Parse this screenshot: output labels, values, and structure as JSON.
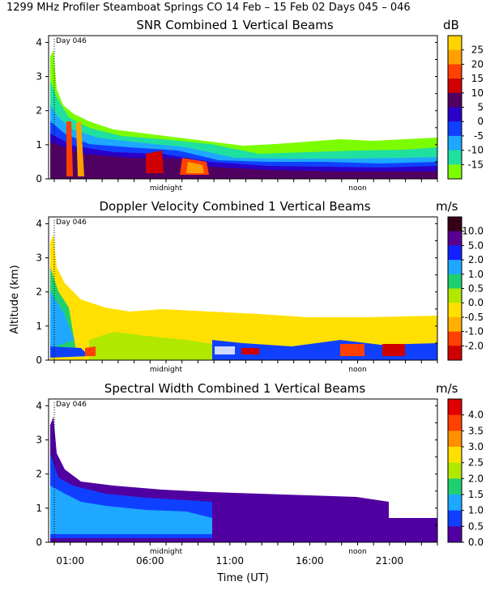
{
  "figure_title": "1299 MHz Profiler   Steamboat Springs CO   14 Feb – 15 Feb 02 Days 045 – 046",
  "chart_data": [
    {
      "type": "heatmap",
      "title": "SNR Combined 1 Vertical Beams",
      "units": "dB",
      "ylabel": "Altitude (km)",
      "ylim": [
        0,
        4.2
      ],
      "yticks": [
        "0",
        "1",
        "2",
        "3",
        "4"
      ],
      "xticks": [
        "midnight",
        "noon"
      ],
      "day_label": "Day 046",
      "colorbar": {
        "labels": [
          "25",
          "20",
          "15",
          "10",
          "5",
          "0",
          "-5",
          "-10",
          "-15"
        ],
        "colors": [
          "#ffd400",
          "#ffa000",
          "#ff4000",
          "#d00000",
          "#500060",
          "#2a00c8",
          "#1040ff",
          "#1ea8ff",
          "#20e0a0",
          "#7cfc00"
        ]
      }
    },
    {
      "type": "heatmap",
      "title": "Doppler Velocity Combined 1 Vertical Beams",
      "units": "m/s",
      "ylabel": "Altitude (km)",
      "ylim": [
        0,
        4.2
      ],
      "yticks": [
        "0",
        "1",
        "2",
        "3",
        "4"
      ],
      "xticks": [
        "midnight",
        "noon"
      ],
      "day_label": "Day 046",
      "colorbar": {
        "labels": [
          "10.0",
          "5.0",
          "2.0",
          "1.0",
          "0.5",
          "0.0",
          "-0.5",
          "-1.0",
          "-2.0"
        ],
        "colors": [
          "#380018",
          "#5a0090",
          "#1020ff",
          "#1ea8ff",
          "#20d070",
          "#b0e800",
          "#ffe000",
          "#ffb000",
          "#ff4000",
          "#d00000"
        ]
      }
    },
    {
      "type": "heatmap",
      "title": "Spectral Width Combined 1 Vertical Beams",
      "units": "m/s",
      "xlabel": "Time (UT)",
      "ylabel": "Altitude (km)",
      "ylim": [
        0,
        4.2
      ],
      "yticks": [
        "0",
        "1",
        "2",
        "3",
        "4"
      ],
      "xticks": [
        "01:00",
        "06:00",
        "11:00",
        "16:00",
        "21:00"
      ],
      "extra_labels": [
        "midnight",
        "noon"
      ],
      "day_label": "Day 046",
      "colorbar": {
        "labels": [
          "4.0",
          "3.5",
          "3.0",
          "2.5",
          "2.0",
          "1.5",
          "1.0",
          "0.5",
          "0.0"
        ],
        "colors": [
          "#e00000",
          "#ff4000",
          "#ff9000",
          "#ffe000",
          "#b0e800",
          "#20d070",
          "#1ea8ff",
          "#1040ff",
          "#5000a0"
        ]
      }
    }
  ]
}
